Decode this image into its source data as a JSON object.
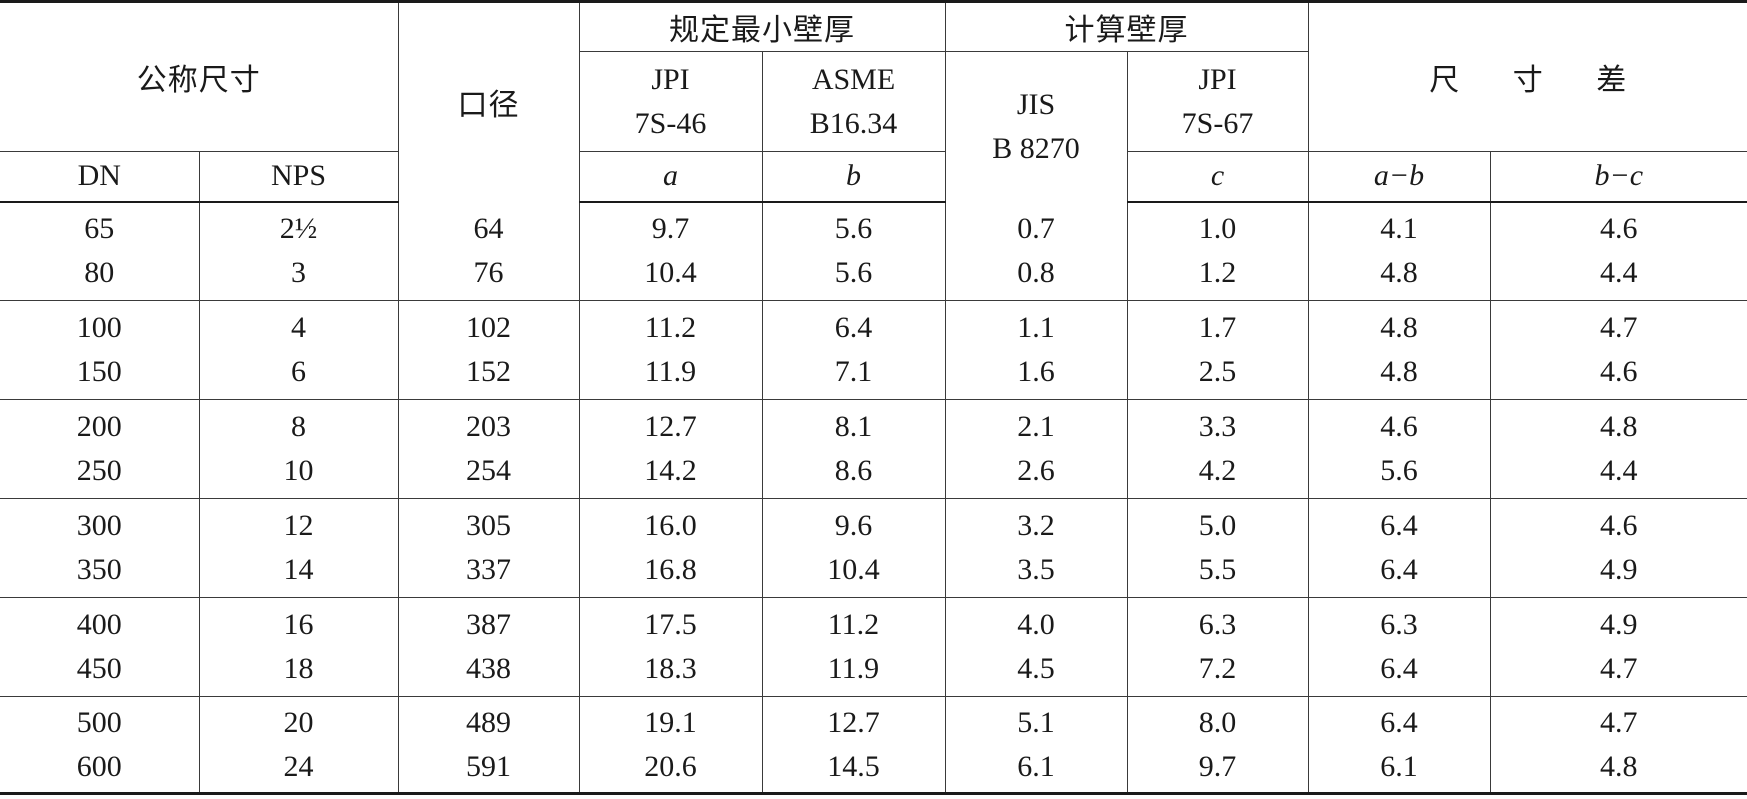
{
  "header": {
    "nominal_size": "公称尺寸",
    "bore": "口径",
    "specified_min_wall": "规定最小壁厚",
    "calculated_wall": "计算壁厚",
    "dimension_diff": "尺 寸 差",
    "jpi_7s46_line1": "JPI",
    "jpi_7s46_line2": "7S-46",
    "asme_line1": "ASME",
    "asme_line2": "B16.34",
    "jis_line1": "JIS",
    "jis_line2": "B 8270",
    "jpi_7s67_line1": "JPI",
    "jpi_7s67_line2": "7S-67",
    "dn": "DN",
    "nps": "NPS",
    "sym_a": "a",
    "sym_b": "b",
    "sym_c": "c",
    "sym_a_minus_b": "a−b",
    "sym_b_minus_c": "b−c"
  },
  "groups": [
    {
      "dn": [
        "65",
        "80"
      ],
      "nps": [
        "2½",
        "3"
      ],
      "bore": [
        "64",
        "76"
      ],
      "a": [
        "9.7",
        "10.4"
      ],
      "b": [
        "5.6",
        "5.6"
      ],
      "jis": [
        "0.7",
        "0.8"
      ],
      "c": [
        "1.0",
        "1.2"
      ],
      "a_b": [
        "4.1",
        "4.8"
      ],
      "b_c": [
        "4.6",
        "4.4"
      ]
    },
    {
      "dn": [
        "100",
        "150"
      ],
      "nps": [
        "4",
        "6"
      ],
      "bore": [
        "102",
        "152"
      ],
      "a": [
        "11.2",
        "11.9"
      ],
      "b": [
        "6.4",
        "7.1"
      ],
      "jis": [
        "1.1",
        "1.6"
      ],
      "c": [
        "1.7",
        "2.5"
      ],
      "a_b": [
        "4.8",
        "4.8"
      ],
      "b_c": [
        "4.7",
        "4.6"
      ]
    },
    {
      "dn": [
        "200",
        "250"
      ],
      "nps": [
        "8",
        "10"
      ],
      "bore": [
        "203",
        "254"
      ],
      "a": [
        "12.7",
        "14.2"
      ],
      "b": [
        "8.1",
        "8.6"
      ],
      "jis": [
        "2.1",
        "2.6"
      ],
      "c": [
        "3.3",
        "4.2"
      ],
      "a_b": [
        "4.6",
        "5.6"
      ],
      "b_c": [
        "4.8",
        "4.4"
      ]
    },
    {
      "dn": [
        "300",
        "350"
      ],
      "nps": [
        "12",
        "14"
      ],
      "bore": [
        "305",
        "337"
      ],
      "a": [
        "16.0",
        "16.8"
      ],
      "b": [
        "9.6",
        "10.4"
      ],
      "jis": [
        "3.2",
        "3.5"
      ],
      "c": [
        "5.0",
        "5.5"
      ],
      "a_b": [
        "6.4",
        "6.4"
      ],
      "b_c": [
        "4.6",
        "4.9"
      ]
    },
    {
      "dn": [
        "400",
        "450"
      ],
      "nps": [
        "16",
        "18"
      ],
      "bore": [
        "387",
        "438"
      ],
      "a": [
        "17.5",
        "18.3"
      ],
      "b": [
        "11.2",
        "11.9"
      ],
      "jis": [
        "4.0",
        "4.5"
      ],
      "c": [
        "6.3",
        "7.2"
      ],
      "a_b": [
        "6.3",
        "6.4"
      ],
      "b_c": [
        "4.9",
        "4.7"
      ]
    },
    {
      "dn": [
        "500",
        "600"
      ],
      "nps": [
        "20",
        "24"
      ],
      "bore": [
        "489",
        "591"
      ],
      "a": [
        "19.1",
        "20.6"
      ],
      "b": [
        "12.7",
        "14.5"
      ],
      "jis": [
        "5.1",
        "6.1"
      ],
      "c": [
        "8.0",
        "9.7"
      ],
      "a_b": [
        "6.4",
        "6.1"
      ],
      "b_c": [
        "4.7",
        "4.8"
      ]
    }
  ]
}
